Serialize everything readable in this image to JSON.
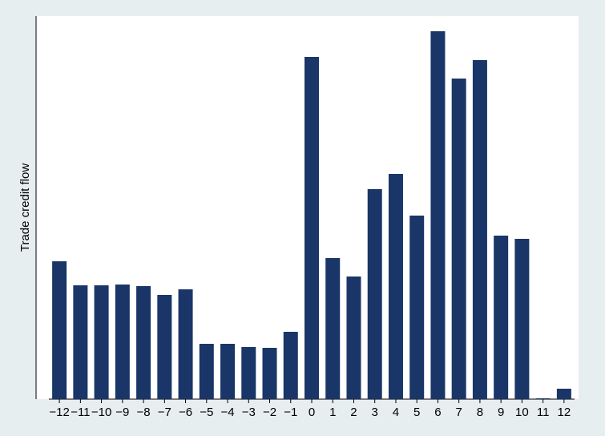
{
  "chart_data": {
    "type": "bar",
    "y_label": "Trade credit flow",
    "categories": [
      "−12",
      "−11",
      "−10",
      "−9",
      "−8",
      "−7",
      "−6",
      "−5",
      "−4",
      "−3",
      "−2",
      "−1",
      "0",
      "1",
      "2",
      "3",
      "4",
      "5",
      "6",
      "7",
      "8",
      "9",
      "10",
      "11",
      "12"
    ],
    "values": [
      172,
      142,
      142,
      143,
      141,
      130,
      137,
      69,
      69,
      65,
      64,
      84,
      427,
      176,
      153,
      262,
      281,
      229,
      459,
      400,
      423,
      204,
      200,
      1,
      13
    ],
    "color": "#1a3668",
    "ylim": [
      0,
      478
    ]
  }
}
